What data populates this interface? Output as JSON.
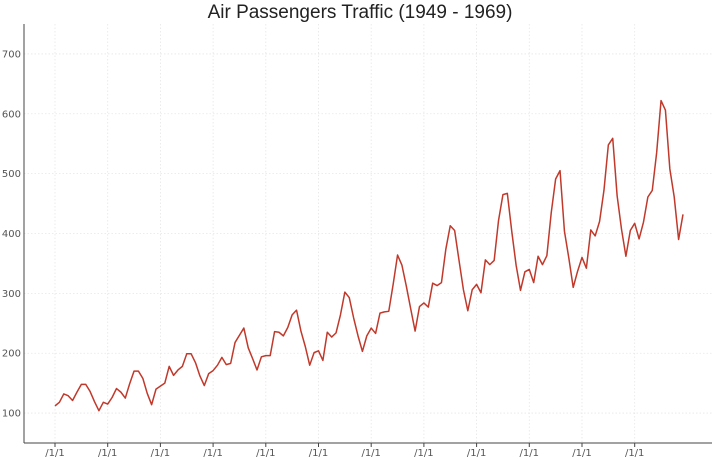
{
  "chart_data": {
    "type": "line",
    "title": "Air Passengers Traffic (1949 - 1969)",
    "xlabel": "",
    "ylabel": "",
    "ylim": [
      50,
      750
    ],
    "yticks": [
      100,
      200,
      300,
      400,
      500,
      600,
      700
    ],
    "xtick_labels": [
      "/1/1",
      "/1/1",
      "/1/1",
      "/1/1",
      "/1/1",
      "/1/1",
      "/1/1",
      "/1/1",
      "/1/1",
      "/1/1",
      "/1/1",
      "/1/1"
    ],
    "grid": true,
    "colors": {
      "line": "#c0392b",
      "axis": "#444444",
      "grid": "#e6e6e6",
      "text": "#555555"
    },
    "series": [
      {
        "name": "Air Passengers",
        "values": [
          112,
          118,
          132,
          129,
          121,
          135,
          148,
          148,
          136,
          119,
          104,
          118,
          115,
          126,
          141,
          135,
          125,
          149,
          170,
          170,
          158,
          133,
          114,
          140,
          145,
          150,
          178,
          163,
          172,
          178,
          199,
          199,
          184,
          162,
          146,
          166,
          171,
          180,
          193,
          181,
          183,
          218,
          230,
          242,
          209,
          191,
          172,
          194,
          196,
          196,
          236,
          235,
          229,
          243,
          264,
          272,
          237,
          211,
          180,
          201,
          204,
          188,
          235,
          227,
          234,
          264,
          302,
          293,
          259,
          229,
          203,
          229,
          242,
          233,
          267,
          269,
          270,
          315,
          364,
          347,
          312,
          274,
          237,
          278,
          284,
          277,
          317,
          313,
          318,
          374,
          413,
          405,
          355,
          306,
          271,
          306,
          315,
          301,
          356,
          348,
          355,
          422,
          465,
          467,
          404,
          347,
          305,
          336,
          340,
          318,
          362,
          348,
          363,
          435,
          491,
          505,
          404,
          359,
          310,
          337,
          360,
          342,
          406,
          396,
          420,
          472,
          548,
          559,
          463,
          407,
          362,
          405,
          417,
          391,
          419,
          461,
          472,
          535,
          622,
          606,
          508,
          461,
          390,
          432
        ]
      }
    ]
  }
}
